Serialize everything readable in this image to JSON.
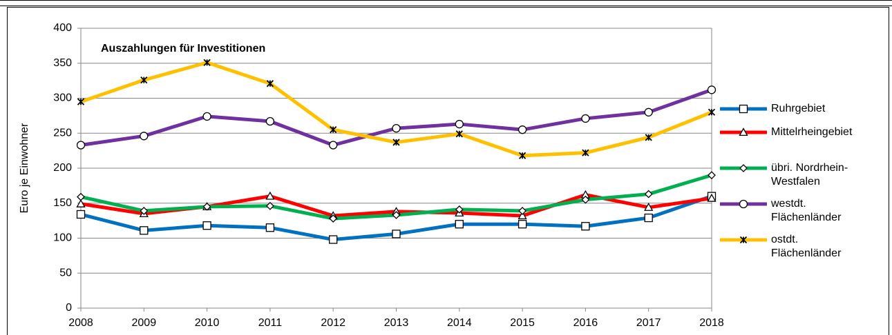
{
  "chart_data": {
    "type": "line",
    "title": "Auszahlungen für Investitionen",
    "ylabel": "Euro je Einwohner",
    "x": [
      2008,
      2009,
      2010,
      2011,
      2012,
      2013,
      2014,
      2015,
      2016,
      2017,
      2018
    ],
    "xlim": [
      2008,
      2018
    ],
    "xticks": [
      2008,
      2009,
      2010,
      2011,
      2012,
      2013,
      2014,
      2015,
      2016,
      2017,
      2018
    ],
    "ylim": [
      0,
      400
    ],
    "yticks": [
      0,
      50,
      100,
      150,
      200,
      250,
      300,
      350,
      400
    ],
    "grid": true,
    "legend": "right",
    "series": [
      {
        "name": "Ruhrgebiet",
        "color": "#0070c0",
        "marker": "square",
        "values": [
          134,
          111,
          118,
          115,
          98,
          106,
          120,
          120,
          117,
          129,
          160
        ]
      },
      {
        "name": "Mittelrheingebiet",
        "color": "#ff0000",
        "marker": "triangle",
        "values": [
          149,
          135,
          145,
          160,
          132,
          138,
          136,
          132,
          162,
          144,
          157
        ]
      },
      {
        "name": "übri. Nordrhein-Westfalen",
        "color": "#00b050",
        "marker": "diamond",
        "values": [
          159,
          139,
          145,
          146,
          128,
          133,
          141,
          139,
          155,
          163,
          190
        ]
      },
      {
        "name": "westdt. Flächenländer",
        "color": "#7030a0",
        "marker": "circle",
        "values": [
          233,
          246,
          274,
          267,
          233,
          257,
          263,
          255,
          271,
          280,
          312
        ]
      },
      {
        "name": "ostdt. Flächenländer",
        "color": "#ffc000",
        "marker": "star",
        "values": [
          295,
          326,
          351,
          321,
          255,
          237,
          249,
          218,
          222,
          244,
          280
        ]
      }
    ]
  }
}
